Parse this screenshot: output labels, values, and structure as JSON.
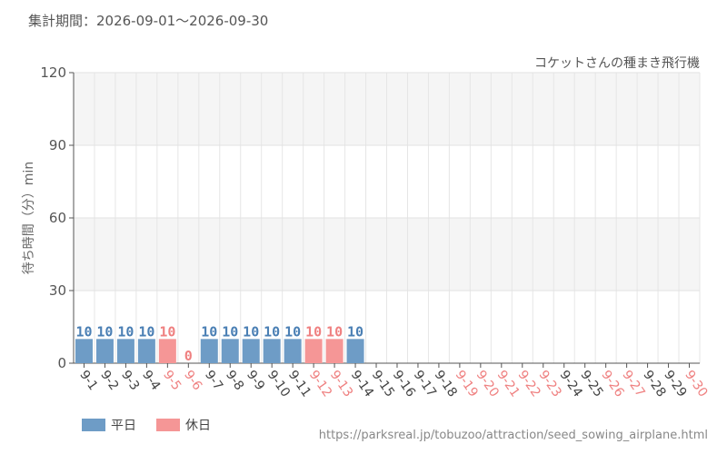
{
  "header": {
    "period": "集計期間：2026-09-01〜2026-09-30"
  },
  "legend": {
    "weekday_label": "平日",
    "holiday_label": "休日"
  },
  "footer": {
    "url": "https://parksreal.jp/tobuzoo/attraction/seed_sowing_airplane.html"
  },
  "colors": {
    "weekday": "#6e9cc6",
    "holiday": "#f59696",
    "weekday_text": "#4a7fb4",
    "holiday_text": "#ef8080"
  },
  "chart_data": {
    "type": "bar",
    "title": "コケットさんの種まき飛行機",
    "ylabel": "待ち時間（分）min",
    "ylim": [
      0,
      120
    ],
    "yticks": [
      0,
      30,
      60,
      90,
      120
    ],
    "grid": true,
    "categories": [
      "9-1",
      "9-2",
      "9-3",
      "9-4",
      "9-5",
      "9-6",
      "9-7",
      "9-8",
      "9-9",
      "9-10",
      "9-11",
      "9-12",
      "9-13",
      "9-14",
      "9-15",
      "9-16",
      "9-17",
      "9-18",
      "9-19",
      "9-20",
      "9-21",
      "9-22",
      "9-23",
      "9-24",
      "9-25",
      "9-26",
      "9-27",
      "9-28",
      "9-29",
      "9-30"
    ],
    "holiday": [
      false,
      false,
      false,
      false,
      true,
      true,
      false,
      false,
      false,
      false,
      false,
      true,
      true,
      false,
      false,
      false,
      false,
      false,
      true,
      true,
      true,
      true,
      true,
      false,
      false,
      true,
      true,
      false,
      false,
      true
    ],
    "values": [
      10,
      10,
      10,
      10,
      10,
      0,
      10,
      10,
      10,
      10,
      10,
      10,
      10,
      10,
      null,
      null,
      null,
      null,
      null,
      null,
      null,
      null,
      null,
      null,
      null,
      null,
      null,
      null,
      null,
      null
    ]
  }
}
